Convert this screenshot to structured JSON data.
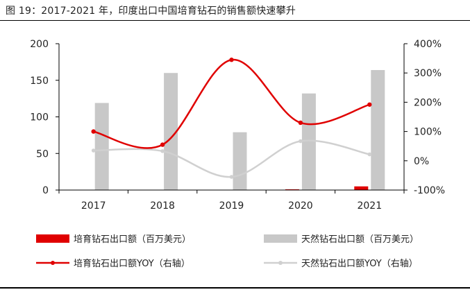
{
  "figure": {
    "title": "图 19：2017-2021 年，印度出口中国培育钻石的销售额快速攀升"
  },
  "colors": {
    "lab_bar": "#e00000",
    "natural_bar": "#c8c8c8",
    "lab_line": "#e00000",
    "natural_line": "#d0d0d0"
  },
  "chart_data": {
    "type": "bar",
    "categories": [
      "2017",
      "2018",
      "2019",
      "2020",
      "2021"
    ],
    "series": [
      {
        "name": "培育钻石出口额（百万美元）",
        "type": "bar",
        "axis": "left",
        "values": [
          0,
          0,
          0,
          1,
          5
        ]
      },
      {
        "name": "天然钻石出口额（百万美元）",
        "type": "bar",
        "axis": "left",
        "values": [
          119,
          160,
          79,
          132,
          164
        ]
      },
      {
        "name": "培育钻石出口额YOY（右轴）",
        "type": "line",
        "axis": "right",
        "values": [
          100,
          55,
          345,
          130,
          192
        ]
      },
      {
        "name": "天然钻石出口额YOY（右轴）",
        "type": "line",
        "axis": "right",
        "values": [
          35,
          33,
          -55,
          67,
          22
        ]
      }
    ],
    "y_left": {
      "min": 0,
      "max": 200,
      "ticks": [
        0,
        50,
        100,
        150,
        200
      ]
    },
    "y_right": {
      "min": -100,
      "max": 400,
      "ticks": [
        "-100%",
        "0%",
        "100%",
        "200%",
        "300%",
        "400%"
      ]
    },
    "grid": false,
    "legend": "bottom"
  }
}
